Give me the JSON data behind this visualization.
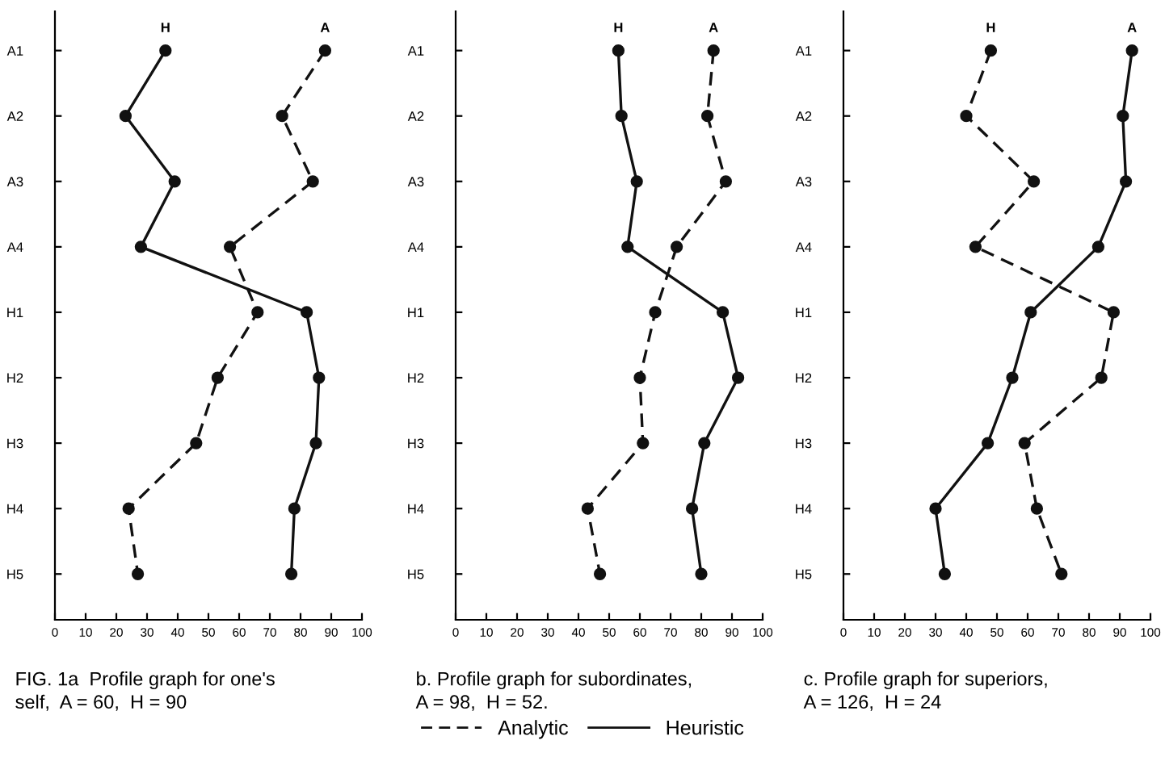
{
  "chart_data": [
    {
      "type": "line",
      "categories": [
        "A1",
        "A2",
        "A3",
        "A4",
        "H1",
        "H2",
        "H3",
        "H4",
        "H5"
      ],
      "orientation": "horizontal",
      "xlim": [
        0,
        100
      ],
      "xticks": [
        0,
        10,
        20,
        30,
        40,
        50,
        60,
        70,
        80,
        90,
        100
      ],
      "marker": "circle",
      "grid": false,
      "legend": "bottom",
      "series": [
        {
          "name": "Analytic",
          "color": "#111111",
          "line_style": "dashed",
          "values": [
            88,
            74,
            84,
            57,
            66,
            53,
            46,
            24,
            27
          ]
        },
        {
          "name": "Heuristic",
          "color": "#111111",
          "line_style": "solid",
          "values": [
            36,
            23,
            39,
            28,
            82,
            86,
            85,
            78,
            77
          ]
        }
      ],
      "annotations": [
        {
          "text": "H",
          "x": 36,
          "y": "A1"
        },
        {
          "text": "A",
          "x": 88,
          "y": "A1"
        },
        "FIG. 1a  Profile graph for one's",
        "self,  A = 60,  H = 90"
      ]
    },
    {
      "type": "line",
      "categories": [
        "A1",
        "A2",
        "A3",
        "A4",
        "H1",
        "H2",
        "H3",
        "H4",
        "H5"
      ],
      "orientation": "horizontal",
      "xlim": [
        0,
        100
      ],
      "xticks": [
        0,
        10,
        20,
        30,
        40,
        50,
        60,
        70,
        80,
        90,
        100
      ],
      "marker": "circle",
      "grid": false,
      "series": [
        {
          "color": "#111111",
          "line_style": "dashed",
          "values": [
            84,
            82,
            88,
            72,
            65,
            60,
            61,
            43,
            47
          ]
        },
        {
          "color": "#111111",
          "line_style": "solid",
          "values": [
            53,
            54,
            59,
            56,
            87,
            92,
            81,
            77,
            80
          ]
        }
      ],
      "annotations": [
        {
          "text": "H",
          "x": 53,
          "y": "A1"
        },
        {
          "text": "A",
          "x": 84,
          "y": "A1"
        },
        "b. Profile graph for subordinates,",
        "A = 98,  H = 52."
      ]
    },
    {
      "type": "line",
      "categories": [
        "A1",
        "A2",
        "A3",
        "A4",
        "H1",
        "H2",
        "H3",
        "H4",
        "H5"
      ],
      "orientation": "horizontal",
      "xlim": [
        0,
        100
      ],
      "xticks": [
        0,
        10,
        20,
        30,
        40,
        50,
        60,
        70,
        80,
        90,
        100
      ],
      "marker": "circle",
      "grid": false,
      "series": [
        {
          "color": "#111111",
          "line_style": "dashed",
          "values": [
            48,
            40,
            62,
            43,
            88,
            84,
            59,
            63,
            71
          ]
        },
        {
          "color": "#111111",
          "line_style": "solid",
          "values": [
            94,
            91,
            92,
            83,
            61,
            55,
            47,
            30,
            33
          ]
        }
      ],
      "annotations": [
        {
          "text": "H",
          "x": 48,
          "y": "A1"
        },
        {
          "text": "A",
          "x": 94,
          "y": "A1"
        },
        "c. Profile graph for superiors,",
        "A = 126,  H = 24"
      ]
    }
  ]
}
